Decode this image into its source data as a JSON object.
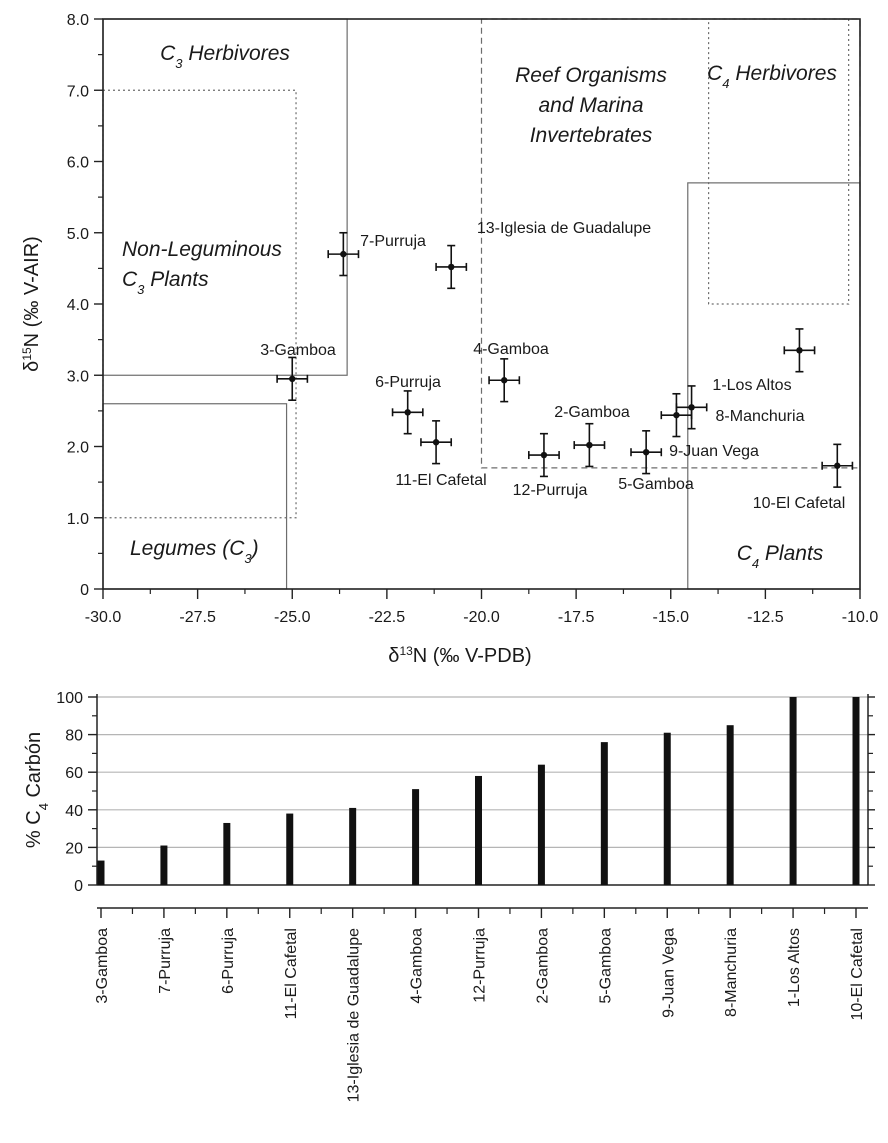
{
  "chart_data": [
    {
      "type": "scatter",
      "xlabel": {
        "symbol": "δ",
        "sup": "13",
        "rest": "N (‰ V-PDB)"
      },
      "ylabel": {
        "symbol": "δ",
        "sup": "15",
        "rest": "N (‰ V-AIR)"
      },
      "xlim": [
        -30.0,
        -10.0
      ],
      "ylim": [
        0,
        8.0
      ],
      "xticks": [
        "-30.0",
        "-27.5",
        "-25.0",
        "-22.5",
        "-20.0",
        "-17.5",
        "-15.0",
        "-12.5",
        "-10.0"
      ],
      "yticks": [
        "0",
        "1.0",
        "2.0",
        "3.0",
        "4.0",
        "5.0",
        "6.0",
        "7.0",
        "8.0"
      ],
      "points": [
        {
          "label": "3-Gamboa",
          "x": -25.0,
          "y": 2.95,
          "xerr": 0.4,
          "yerr": 0.3
        },
        {
          "label": "7-Purruja",
          "x": -23.65,
          "y": 4.7,
          "xerr": 0.4,
          "yerr": 0.3
        },
        {
          "label": "13-Iglesia de Guadalupe",
          "x": -20.8,
          "y": 4.52,
          "xerr": 0.4,
          "yerr": 0.3
        },
        {
          "label": "6-Purruja",
          "x": -21.95,
          "y": 2.48,
          "xerr": 0.4,
          "yerr": 0.3
        },
        {
          "label": "11-El Cafetal",
          "x": -21.2,
          "y": 2.06,
          "xerr": 0.4,
          "yerr": 0.3
        },
        {
          "label": "4-Gamboa",
          "x": -19.4,
          "y": 2.93,
          "xerr": 0.4,
          "yerr": 0.3
        },
        {
          "label": "12-Purruja",
          "x": -18.35,
          "y": 1.88,
          "xerr": 0.4,
          "yerr": 0.3
        },
        {
          "label": "2-Gamboa",
          "x": -17.15,
          "y": 2.02,
          "xerr": 0.4,
          "yerr": 0.3
        },
        {
          "label": "5-Gamboa",
          "x": -15.65,
          "y": 1.92,
          "xerr": 0.4,
          "yerr": 0.3
        },
        {
          "label": "9-Juan Vega",
          "x": -14.85,
          "y": 2.44,
          "xerr": 0.4,
          "yerr": 0.3
        },
        {
          "label": "8-Manchuria",
          "x": -14.45,
          "y": 2.55,
          "xerr": 0.4,
          "yerr": 0.3
        },
        {
          "label": "1-Los Altos",
          "x": -11.6,
          "y": 3.35,
          "xerr": 0.4,
          "yerr": 0.3
        },
        {
          "label": "10-El Cafetal",
          "x": -10.6,
          "y": 1.73,
          "xerr": 0.4,
          "yerr": 0.3
        }
      ],
      "regions": [
        {
          "id": "c3-herbivores",
          "line": "solid",
          "x": [
            -30.0,
            -23.55
          ],
          "y": [
            3.0,
            8.0
          ],
          "title": [
            {
              "t": "C",
              "sub": "3",
              "rest": " Herbivores"
            }
          ]
        },
        {
          "id": "non-leguminous-c3-plants",
          "line": "dotted",
          "x": [
            -30.0,
            -24.9
          ],
          "y": [
            1.0,
            7.0
          ],
          "title": [
            {
              "t": "Non-Leguminous"
            },
            {
              "t": "C",
              "sub": "3",
              "rest": " Plants"
            }
          ]
        },
        {
          "id": "legumes-c3",
          "line": "solid",
          "x": [
            -30.0,
            -25.15
          ],
          "y": [
            0,
            2.6
          ],
          "title": [
            {
              "t": "Legumes (C",
              "sub": "3",
              "rest": ")"
            }
          ]
        },
        {
          "id": "reef-organisms",
          "line": "dashed",
          "x": [
            -20.0,
            -10.0
          ],
          "y": [
            1.7,
            8.0
          ],
          "title": [
            {
              "t": "Reef Organisms"
            },
            {
              "t": "and Marina"
            },
            {
              "t": "Invertebrates"
            }
          ]
        },
        {
          "id": "c4-herbivores",
          "line": "dotted",
          "x": [
            -14.0,
            -10.3
          ],
          "y": [
            4.0,
            8.0
          ],
          "title": [
            {
              "t": "C",
              "sub": "4",
              "rest": " Herbivores"
            }
          ]
        },
        {
          "id": "c4-plants",
          "line": "solid",
          "x": [
            -14.55,
            -10.0
          ],
          "y": [
            0,
            5.7
          ],
          "title": [
            {
              "t": "C",
              "sub": "4",
              "rest": " Plants"
            }
          ]
        }
      ]
    },
    {
      "type": "bar",
      "ylabel": {
        "pre": "% C",
        "sub": "4",
        "rest": " Carbón"
      },
      "ylim": [
        0,
        100
      ],
      "yticks": [
        "0",
        "20",
        "40",
        "60",
        "80",
        "100"
      ],
      "categories": [
        "3-Gamboa",
        "7-Purruja",
        "6-Purruja",
        "11-El Cafetal",
        "13-Iglesia de Guadalupe",
        "4-Gamboa",
        "12-Purruja",
        "2-Gamboa",
        "5-Gamboa",
        "9-Juan Vega",
        "8-Manchuria",
        "1-Los Altos",
        "10-El Cafetal"
      ],
      "values": [
        13,
        21,
        33,
        38,
        41,
        51,
        58,
        64,
        76,
        81,
        85,
        100,
        100
      ]
    }
  ]
}
